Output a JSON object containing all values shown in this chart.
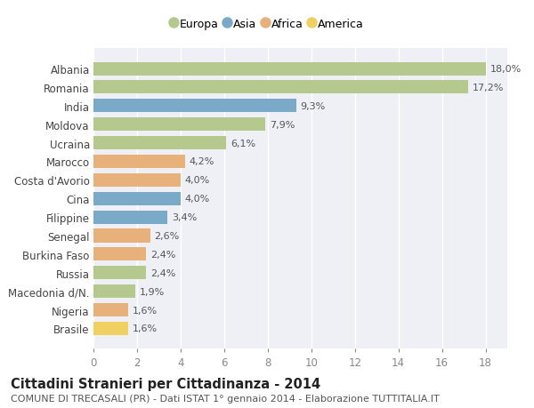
{
  "categories": [
    "Albania",
    "Romania",
    "India",
    "Moldova",
    "Ucraina",
    "Marocco",
    "Costa d'Avorio",
    "Cina",
    "Filippine",
    "Senegal",
    "Burkina Faso",
    "Russia",
    "Macedonia d/N.",
    "Nigeria",
    "Brasile"
  ],
  "values": [
    18.0,
    17.2,
    9.3,
    7.9,
    6.1,
    4.2,
    4.0,
    4.0,
    3.4,
    2.6,
    2.4,
    2.4,
    1.9,
    1.6,
    1.6
  ],
  "labels": [
    "18,0%",
    "17,2%",
    "9,3%",
    "7,9%",
    "6,1%",
    "4,2%",
    "4,0%",
    "4,0%",
    "3,4%",
    "2,6%",
    "2,4%",
    "2,4%",
    "1,9%",
    "1,6%",
    "1,6%"
  ],
  "continents": [
    "Europa",
    "Europa",
    "Asia",
    "Europa",
    "Europa",
    "Africa",
    "Africa",
    "Asia",
    "Asia",
    "Africa",
    "Africa",
    "Europa",
    "Europa",
    "Africa",
    "America"
  ],
  "continent_colors": {
    "Europa": "#b5c98e",
    "Asia": "#7aaac8",
    "Africa": "#e8b07a",
    "America": "#f0d060"
  },
  "legend_order": [
    "Europa",
    "Asia",
    "Africa",
    "America"
  ],
  "legend_colors": [
    "#b5c98e",
    "#7aaac8",
    "#e8b07a",
    "#f0d060"
  ],
  "title": "Cittadini Stranieri per Cittadinanza - 2014",
  "subtitle": "COMUNE DI TRECASALI (PR) - Dati ISTAT 1° gennaio 2014 - Elaborazione TUTTITALIA.IT",
  "xlim": [
    0,
    19
  ],
  "xticks": [
    0,
    2,
    4,
    6,
    8,
    10,
    12,
    14,
    16,
    18
  ],
  "plot_bg": "#eef0f5",
  "fig_bg": "#ffffff",
  "grid_color": "#ffffff",
  "label_fontsize": 8.0,
  "ytick_fontsize": 8.5,
  "xtick_fontsize": 8.5,
  "title_fontsize": 10.5,
  "subtitle_fontsize": 8.0,
  "bar_height": 0.72
}
